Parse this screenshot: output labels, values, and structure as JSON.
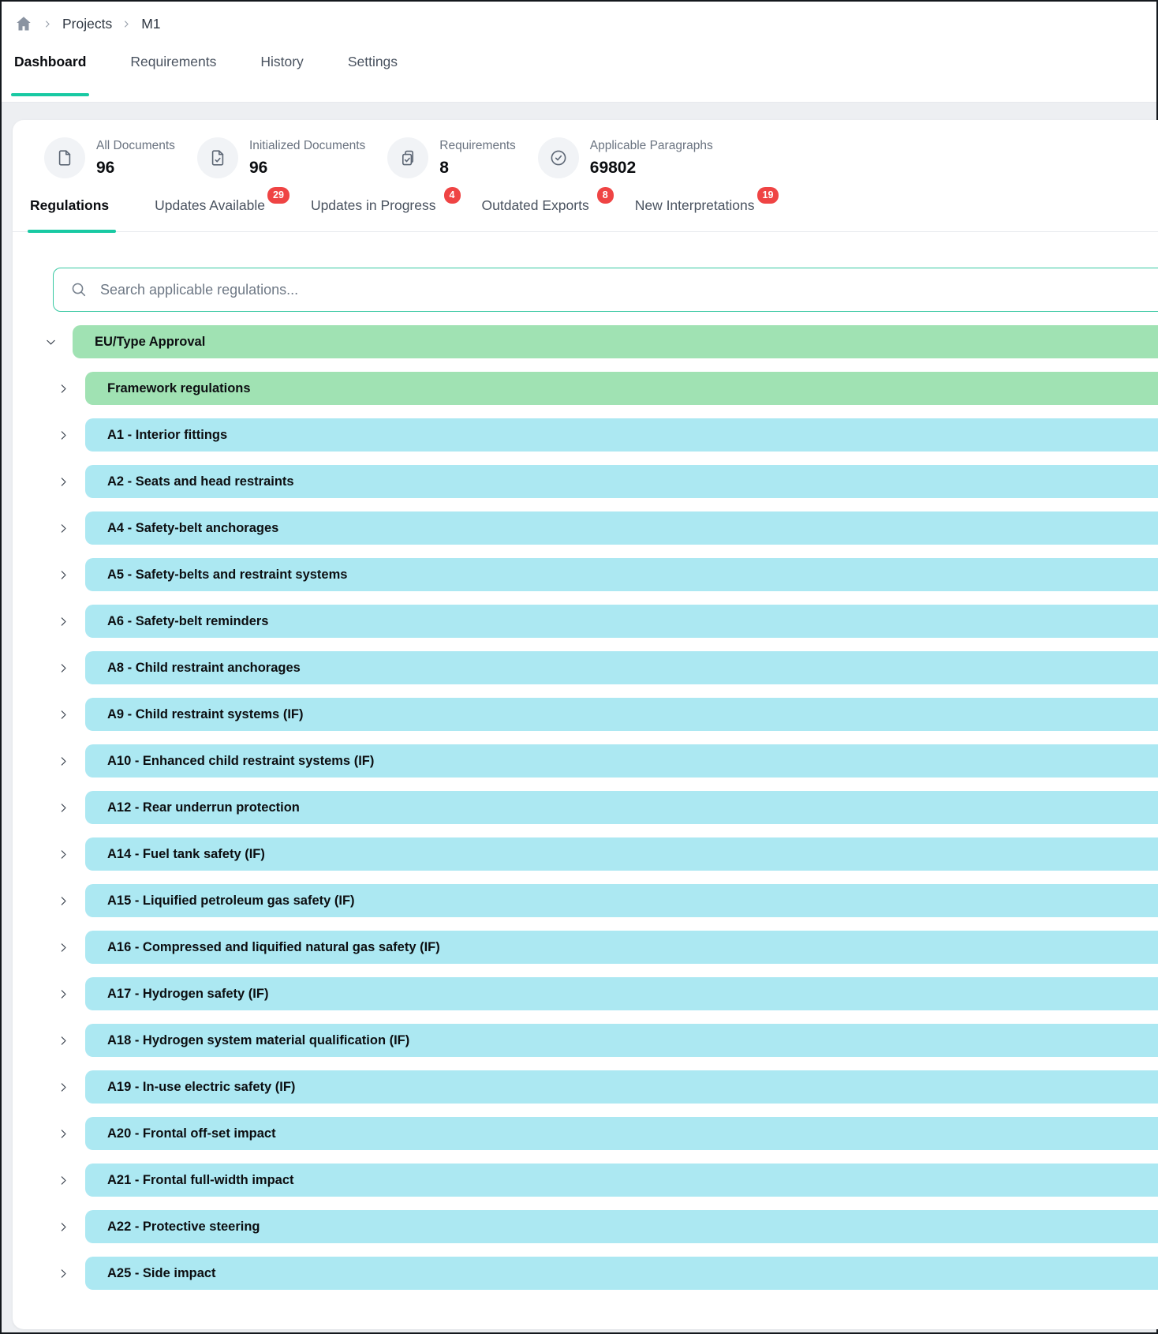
{
  "colors": {
    "accent_teal": "#18c9a3",
    "row_green": "#a0e2b3",
    "row_blue": "#ace8f2",
    "badge_red": "#ef4444"
  },
  "breadcrumb": {
    "items": [
      "Projects",
      "M1"
    ]
  },
  "main_tabs": [
    {
      "label": "Dashboard",
      "active": true
    },
    {
      "label": "Requirements",
      "active": false
    },
    {
      "label": "History",
      "active": false
    },
    {
      "label": "Settings",
      "active": false
    }
  ],
  "stats": [
    {
      "icon": "document-icon",
      "label": "All Documents",
      "value": "96"
    },
    {
      "icon": "document-check-icon",
      "label": "Initialized Documents",
      "value": "96"
    },
    {
      "icon": "clipboard-check-icon",
      "label": "Requirements",
      "value": "8"
    },
    {
      "icon": "circle-check-icon",
      "label": "Applicable Paragraphs",
      "value": "69802"
    }
  ],
  "sub_tabs": [
    {
      "label": "Regulations",
      "active": true,
      "badge": null
    },
    {
      "label": "Updates Available",
      "active": false,
      "badge": "29"
    },
    {
      "label": "Updates in Progress",
      "active": false,
      "badge": "4"
    },
    {
      "label": "Outdated Exports",
      "active": false,
      "badge": "8"
    },
    {
      "label": "New Interpretations",
      "active": false,
      "badge": "19"
    }
  ],
  "search": {
    "placeholder": "Search applicable regulations..."
  },
  "tree": {
    "rows": [
      {
        "label": "EU/Type Approval",
        "color": "green",
        "level": 0,
        "expanded": true
      },
      {
        "label": "Framework regulations",
        "color": "green",
        "level": 1,
        "expanded": false
      },
      {
        "label": "A1 - Interior fittings",
        "color": "blue",
        "level": 1,
        "expanded": false
      },
      {
        "label": "A2 - Seats and head restraints",
        "color": "blue",
        "level": 1,
        "expanded": false
      },
      {
        "label": "A4 - Safety-belt anchorages",
        "color": "blue",
        "level": 1,
        "expanded": false
      },
      {
        "label": "A5 - Safety-belts and restraint systems",
        "color": "blue",
        "level": 1,
        "expanded": false
      },
      {
        "label": "A6 - Safety-belt reminders",
        "color": "blue",
        "level": 1,
        "expanded": false
      },
      {
        "label": "A8 - Child restraint anchorages",
        "color": "blue",
        "level": 1,
        "expanded": false
      },
      {
        "label": "A9 - Child restraint systems (IF)",
        "color": "blue",
        "level": 1,
        "expanded": false
      },
      {
        "label": "A10 - Enhanced child restraint systems (IF)",
        "color": "blue",
        "level": 1,
        "expanded": false
      },
      {
        "label": "A12 - Rear underrun protection",
        "color": "blue",
        "level": 1,
        "expanded": false
      },
      {
        "label": "A14 - Fuel tank safety (IF)",
        "color": "blue",
        "level": 1,
        "expanded": false
      },
      {
        "label": "A15 - Liquified petroleum gas safety (IF)",
        "color": "blue",
        "level": 1,
        "expanded": false
      },
      {
        "label": "A16 - Compressed and liquified natural gas safety (IF)",
        "color": "blue",
        "level": 1,
        "expanded": false
      },
      {
        "label": "A17 - Hydrogen safety (IF)",
        "color": "blue",
        "level": 1,
        "expanded": false
      },
      {
        "label": "A18 - Hydrogen system material qualification (IF)",
        "color": "blue",
        "level": 1,
        "expanded": false
      },
      {
        "label": "A19 - In-use electric safety (IF)",
        "color": "blue",
        "level": 1,
        "expanded": false
      },
      {
        "label": "A20 - Frontal off-set impact",
        "color": "blue",
        "level": 1,
        "expanded": false
      },
      {
        "label": "A21 - Frontal full-width impact",
        "color": "blue",
        "level": 1,
        "expanded": false
      },
      {
        "label": "A22 - Protective steering",
        "color": "blue",
        "level": 1,
        "expanded": false
      },
      {
        "label": "A25 - Side impact",
        "color": "blue",
        "level": 1,
        "expanded": false
      }
    ]
  }
}
